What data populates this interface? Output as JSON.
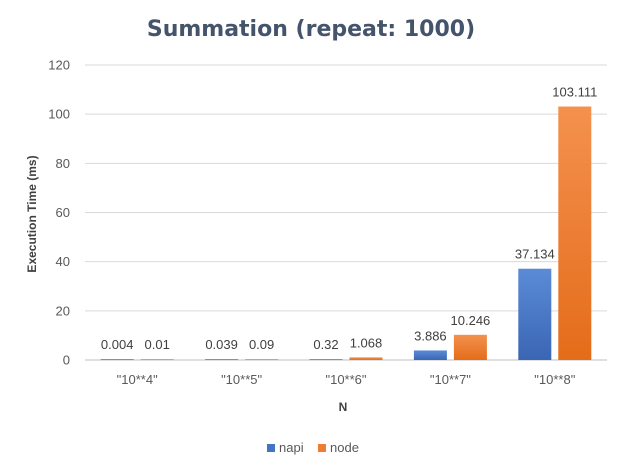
{
  "chart_data": {
    "type": "bar",
    "title": "Summation (repeat: 1000)",
    "xlabel": "N",
    "ylabel": "Execution Time (ms)",
    "categories": [
      "\"10**4\"",
      "\"10**5\"",
      "\"10**6\"",
      "\"10**7\"",
      "\"10**8\""
    ],
    "series": [
      {
        "name": "napi",
        "values": [
          0.004,
          0.039,
          0.32,
          3.886,
          37.134
        ],
        "labels": [
          "0.004",
          "0.039",
          "0.32",
          "3.886",
          "37.134"
        ],
        "color": "#4472c4"
      },
      {
        "name": "node",
        "values": [
          0.01,
          0.09,
          1.068,
          10.246,
          103.111
        ],
        "labels": [
          "0.01",
          "0.09",
          "1.068",
          "10.246",
          "103.111"
        ],
        "color": "#ed7d31"
      }
    ],
    "ylim": [
      0,
      120
    ],
    "yticks": [
      "0",
      "20",
      "40",
      "60",
      "80",
      "100",
      "120"
    ],
    "grid": true,
    "legend": "bottom"
  }
}
